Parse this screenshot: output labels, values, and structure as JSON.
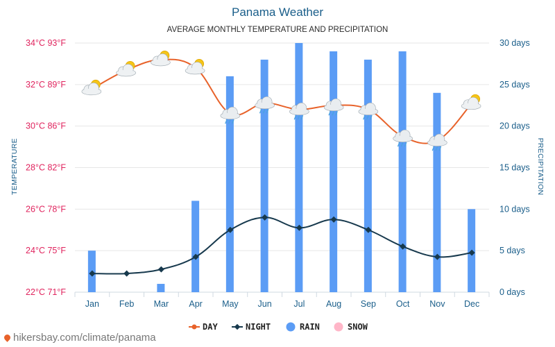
{
  "title": "Panama Weather",
  "subtitle": "AVERAGE MONTHLY TEMPERATURE AND PRECIPITATION",
  "credit": "hikersbay.com/climate/panama",
  "colors": {
    "day": "#e8622a",
    "night": "#17394d",
    "rain": "#5b9cf5",
    "snow": "#ffb6c8",
    "grid": "#e6e6e6",
    "left_axis": "#e0245e",
    "right_axis": "#1a5e8a"
  },
  "chart_data": {
    "type": "line+bar",
    "title": "Panama Weather",
    "subtitle": "AVERAGE MONTHLY TEMPERATURE AND PRECIPITATION",
    "categories": [
      "Jan",
      "Feb",
      "Mar",
      "Apr",
      "May",
      "Jun",
      "Jul",
      "Aug",
      "Sep",
      "Oct",
      "Nov",
      "Dec"
    ],
    "y_left": {
      "label": "TEMPERATURE",
      "ylim": [
        22,
        34
      ],
      "ticks": [
        {
          "value": 22,
          "label": "22°C 71°F"
        },
        {
          "value": 24,
          "label": "24°C 75°F"
        },
        {
          "value": 26,
          "label": "26°C 78°F"
        },
        {
          "value": 28,
          "label": "28°C 82°F"
        },
        {
          "value": 30,
          "label": "30°C 86°F"
        },
        {
          "value": 32,
          "label": "32°C 89°F"
        },
        {
          "value": 34,
          "label": "34°C 93°F"
        }
      ]
    },
    "y_right": {
      "label": "PRECIPITATION",
      "ylim": [
        0,
        30
      ],
      "ticks": [
        {
          "value": 0,
          "label": "0 days"
        },
        {
          "value": 5,
          "label": "5 days"
        },
        {
          "value": 10,
          "label": "10 days"
        },
        {
          "value": 15,
          "label": "15 days"
        },
        {
          "value": 20,
          "label": "20 days"
        },
        {
          "value": 25,
          "label": "25 days"
        },
        {
          "value": 30,
          "label": "30 days"
        }
      ]
    },
    "series": [
      {
        "name": "DAY",
        "type": "line",
        "axis": "left",
        "values": [
          31.8,
          32.7,
          33.2,
          32.8,
          30.6,
          31.1,
          30.8,
          31.0,
          30.8,
          29.5,
          29.3,
          31.1
        ]
      },
      {
        "name": "NIGHT",
        "type": "line",
        "axis": "left",
        "values": [
          22.9,
          22.9,
          23.1,
          23.7,
          25.0,
          25.6,
          25.1,
          25.5,
          25.0,
          24.2,
          23.7,
          23.9
        ]
      },
      {
        "name": "RAIN",
        "type": "bar",
        "axis": "right",
        "values": [
          5,
          0,
          1,
          11,
          26,
          28,
          30,
          29,
          28,
          29,
          24,
          10
        ]
      },
      {
        "name": "SNOW",
        "type": "bar",
        "axis": "right",
        "values": [
          0,
          0,
          0,
          0,
          0,
          0,
          0,
          0,
          0,
          0,
          0,
          0
        ]
      }
    ],
    "weather_icons": [
      "sun-cloud-icon",
      "sun-cloud-icon",
      "sun-cloud-icon",
      "sun-cloud-icon",
      "rain-cloud-icon",
      "rain-cloud-icon",
      "rain-cloud-icon",
      "rain-cloud-icon",
      "rain-cloud-icon",
      "rain-cloud-icon",
      "rain-cloud-icon",
      "sun-cloud-icon"
    ],
    "grid": true,
    "legend_position": "bottom-center"
  }
}
